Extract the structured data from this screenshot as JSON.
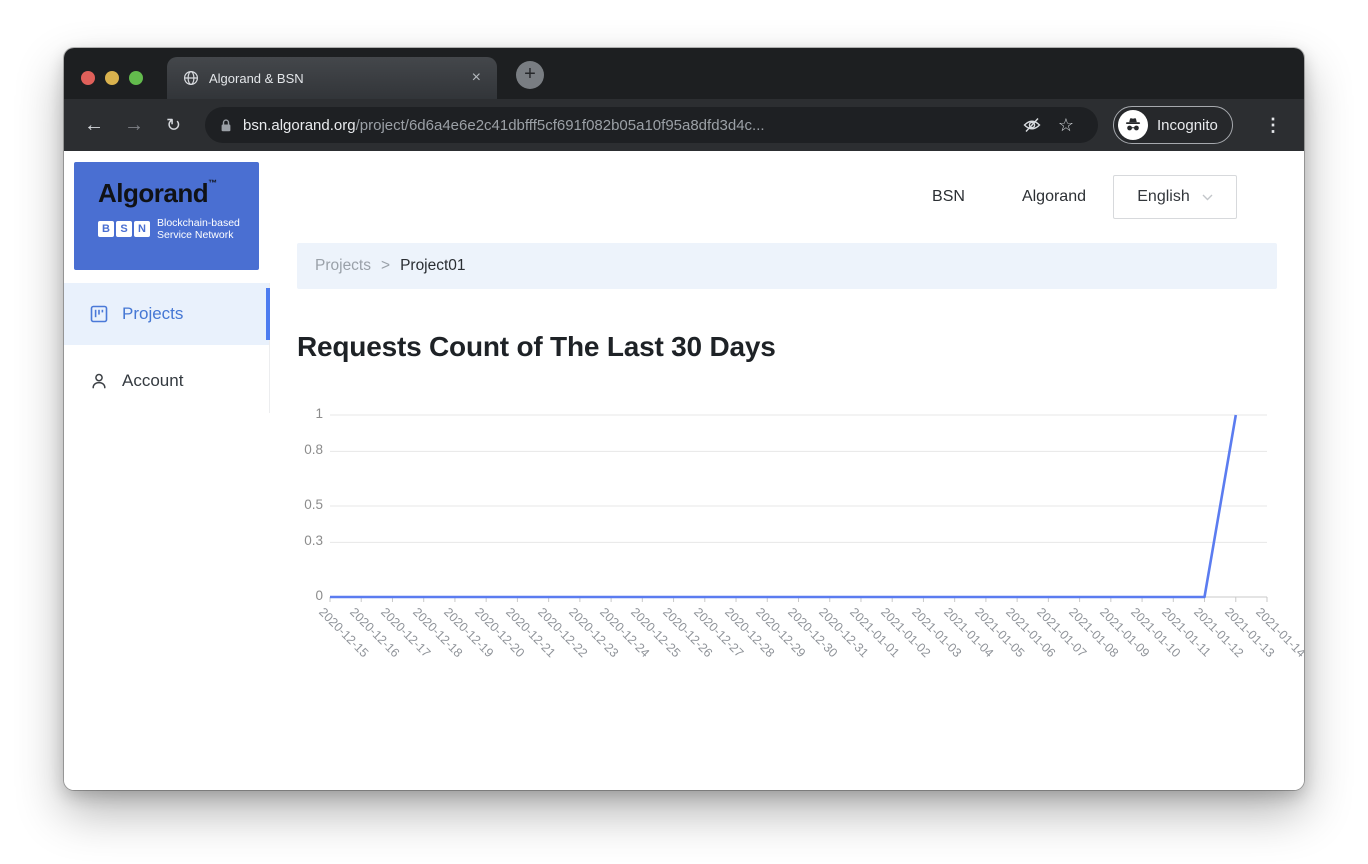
{
  "browser": {
    "tab_title": "Algorand & BSN",
    "close_glyph": "×",
    "new_tab_glyph": "+",
    "back_glyph": "←",
    "forward_glyph": "→",
    "reload_glyph": "↻",
    "star_glyph": "☆",
    "menu_glyph": "⋮",
    "url_domain": "bsn.algorand.org",
    "url_path": "/project/6d6a4e6e2c41dbfff5cf691f082b05a10f95a8dfd3d4c...",
    "incognito_label": "Incognito"
  },
  "sidebar": {
    "logo": {
      "brand": "Algorand",
      "tm": "™",
      "bsn_letters": [
        "B",
        "S",
        "N"
      ],
      "tagline_line1": "Blockchain-based",
      "tagline_line2": "Service Network"
    },
    "items": [
      {
        "label": "Projects",
        "active": true
      },
      {
        "label": "Account",
        "active": false
      }
    ]
  },
  "header": {
    "links": [
      {
        "label": "BSN"
      },
      {
        "label": "Algorand"
      }
    ],
    "language_selected": "English"
  },
  "breadcrumb": {
    "items": [
      "Projects",
      "Project01"
    ],
    "separator": ">"
  },
  "page": {
    "title": "Requests Count of The Last 30 Days"
  },
  "colors": {
    "accent_blue": "#4d7cf0",
    "logo_blue": "#4a6fd2",
    "line_blue": "#5b7cf0",
    "active_item_bg": "#e9f1fc",
    "breadcrumb_bg": "#edf3fb"
  },
  "chart_data": {
    "type": "line",
    "title": "Requests Count of The Last 30 Days",
    "x": [
      "2020-12-15",
      "2020-12-16",
      "2020-12-17",
      "2020-12-18",
      "2020-12-19",
      "2020-12-20",
      "2020-12-21",
      "2020-12-22",
      "2020-12-23",
      "2020-12-24",
      "2020-12-25",
      "2020-12-26",
      "2020-12-27",
      "2020-12-28",
      "2020-12-29",
      "2020-12-30",
      "2020-12-31",
      "2021-01-01",
      "2021-01-02",
      "2021-01-03",
      "2021-01-04",
      "2021-01-05",
      "2021-01-06",
      "2021-01-07",
      "2021-01-08",
      "2021-01-09",
      "2021-01-10",
      "2021-01-11",
      "2021-01-12",
      "2021-01-13",
      "2021-01-14"
    ],
    "values": [
      0,
      0,
      0,
      0,
      0,
      0,
      0,
      0,
      0,
      0,
      0,
      0,
      0,
      0,
      0,
      0,
      0,
      0,
      0,
      0,
      0,
      0,
      0,
      0,
      0,
      0,
      0,
      0,
      0,
      1,
      null
    ],
    "ylim": [
      0,
      1
    ],
    "ytick_values": [
      0,
      0.3,
      0.5,
      0.8,
      1
    ],
    "ytick_labels": [
      "0",
      "0.3",
      "0.5",
      "0.8",
      "1"
    ],
    "x_label_rotation": 45,
    "grid": "horizontal",
    "legend": "none",
    "line_color": "#5b7cf0"
  }
}
